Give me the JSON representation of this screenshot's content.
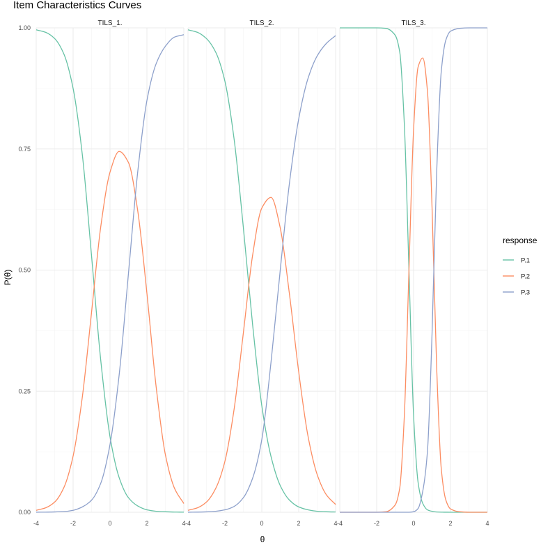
{
  "chart_data": {
    "type": "line",
    "title": "Item Characteristics Curves",
    "xlabel": "θ",
    "ylabel": "P(θ)",
    "xlim": [
      -4,
      4
    ],
    "ylim": [
      0,
      1
    ],
    "x_ticks": [
      "-4",
      "-2",
      "0",
      "2",
      "4"
    ],
    "y_ticks": [
      "0.00",
      "0.25",
      "0.50",
      "0.75",
      "1.00"
    ],
    "legend": {
      "title": "response",
      "position": "right",
      "entries": [
        "P.1",
        "P.2",
        "P.3"
      ]
    },
    "colors": {
      "P.1": "#66c2a5",
      "P.2": "#fc8d62",
      "P.3": "#8da0cb"
    },
    "grid": true,
    "facets": [
      {
        "label": "TILS_1.",
        "x": [
          -4,
          -3.5,
          -3,
          -2.5,
          -2,
          -1.5,
          -1,
          -0.5,
          0,
          0.5,
          1,
          1.5,
          2,
          2.5,
          3,
          3.5,
          4
        ],
        "series": [
          {
            "name": "P.1",
            "values": [
              0.996,
              0.991,
              0.978,
              0.946,
              0.875,
              0.738,
              0.529,
              0.313,
              0.156,
              0.071,
              0.03,
              0.013,
              0.005,
              0.002,
              0.001,
              0.0004,
              0.0002
            ]
          },
          {
            "name": "P.2",
            "values": [
              0.004,
              0.009,
              0.021,
              0.051,
              0.116,
              0.238,
              0.413,
              0.59,
              0.702,
              0.745,
              0.722,
              0.623,
              0.452,
              0.259,
              0.119,
              0.049,
              0.018
            ]
          },
          {
            "name": "P.3",
            "values": [
              0.0001,
              0.0002,
              0.0006,
              0.0014,
              0.004,
              0.011,
              0.025,
              0.06,
              0.14,
              0.285,
              0.493,
              0.702,
              0.85,
              0.926,
              0.962,
              0.981,
              0.986
            ]
          }
        ]
      },
      {
        "label": "TILS_2.",
        "x": [
          -4,
          -3.5,
          -3,
          -2.5,
          -2,
          -1.5,
          -1,
          -0.5,
          0,
          0.5,
          1,
          1.5,
          2,
          2.5,
          3,
          3.5,
          4
        ],
        "series": [
          {
            "name": "P.1",
            "values": [
              0.996,
              0.991,
              0.978,
              0.95,
              0.89,
              0.77,
              0.588,
              0.388,
              0.22,
              0.115,
              0.055,
              0.025,
              0.011,
              0.005,
              0.002,
              0.001,
              0.0005
            ]
          },
          {
            "name": "P.2",
            "values": [
              0.004,
              0.009,
              0.021,
              0.049,
              0.105,
              0.213,
              0.37,
              0.53,
              0.628,
              0.65,
              0.587,
              0.45,
              0.29,
              0.158,
              0.078,
              0.036,
              0.016
            ]
          },
          {
            "name": "P.3",
            "values": [
              0.0001,
              0.0003,
              0.0008,
              0.002,
              0.005,
              0.012,
              0.03,
              0.07,
              0.15,
              0.31,
              0.5,
              0.68,
              0.812,
              0.895,
              0.942,
              0.968,
              0.984
            ]
          }
        ]
      },
      {
        "label": "TILS_3.",
        "x": [
          -4,
          -3,
          -2,
          -1.5,
          -1,
          -0.75,
          -0.5,
          -0.25,
          0,
          0.25,
          0.5,
          0.75,
          1,
          1.25,
          1.5,
          1.75,
          2,
          2.5,
          3,
          4
        ],
        "series": [
          {
            "name": "P.1",
            "values": [
              1,
              1,
              1,
              0.999,
              0.985,
              0.95,
              0.8,
              0.5,
              0.2,
              0.06,
              0.018,
              0.005,
              0.002,
              0.0005,
              0.0002,
              0.0001,
              0,
              0,
              0,
              0
            ]
          },
          {
            "name": "P.2",
            "values": [
              0,
              0,
              0,
              0.001,
              0.015,
              0.05,
              0.2,
              0.5,
              0.79,
              0.92,
              0.938,
              0.87,
              0.63,
              0.3,
              0.09,
              0.025,
              0.007,
              0.001,
              0,
              0
            ]
          },
          {
            "name": "P.3",
            "values": [
              0,
              0,
              0,
              0,
              0,
              0,
              0,
              0,
              0.001,
              0.008,
              0.044,
              0.125,
              0.368,
              0.7,
              0.91,
              0.975,
              0.993,
              0.999,
              1,
              1
            ]
          }
        ]
      }
    ]
  }
}
